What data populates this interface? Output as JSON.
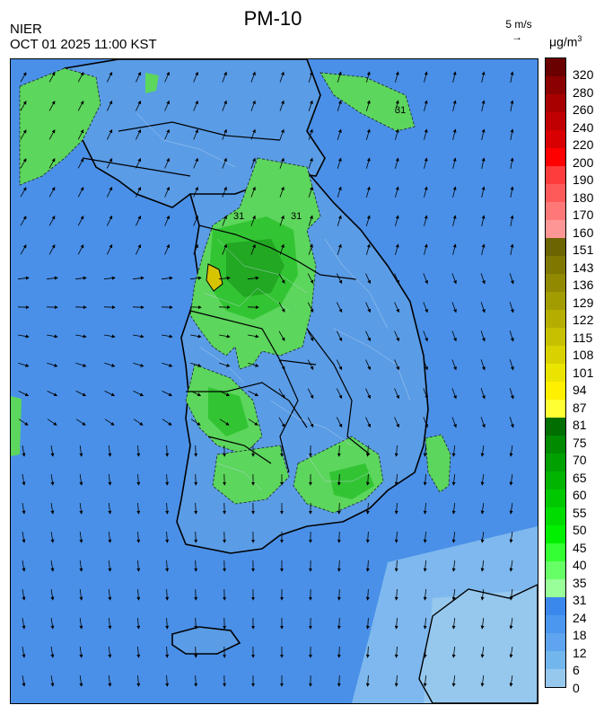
{
  "header": {
    "title": "PM-10",
    "agency": "NIER",
    "timestamp": "OCT 01 2025 11:00 KST",
    "wind_reference": "5 m/s",
    "unit_base": "μg/m",
    "unit_exponent": "3"
  },
  "legend": {
    "thresholds": [
      "320",
      "280",
      "260",
      "240",
      "220",
      "200",
      "190",
      "180",
      "170",
      "160",
      "151",
      "143",
      "136",
      "129",
      "122",
      "115",
      "108",
      "101",
      "94",
      "87",
      "81",
      "75",
      "70",
      "65",
      "60",
      "55",
      "50",
      "45",
      "40",
      "35",
      "31",
      "24",
      "18",
      "12",
      "6",
      "0"
    ],
    "colors": [
      "#6b0000",
      "#8b0000",
      "#a80000",
      "#c00000",
      "#d80000",
      "#ff0000",
      "#ff3c3c",
      "#ff5a5a",
      "#ff7878",
      "#ff9696",
      "#6b6400",
      "#7f7800",
      "#918a00",
      "#a39c00",
      "#b5ae00",
      "#c7c000",
      "#d9d200",
      "#ebe400",
      "#fff000",
      "#ffff33",
      "#006e00",
      "#008a00",
      "#00a000",
      "#00b400",
      "#00c800",
      "#00dc00",
      "#00f000",
      "#33ff33",
      "#66ff66",
      "#99ff99",
      "#3a88ec",
      "#4b96ee",
      "#5ea4ee",
      "#72b6ee",
      "#96c8ee"
    ]
  },
  "map": {
    "region": "South Korea",
    "contour_label": "31",
    "background_color": "#4a90e8",
    "land_color": "#5a9ce6",
    "coast_color": "#000000",
    "hotspot_color": "#d7c400"
  }
}
